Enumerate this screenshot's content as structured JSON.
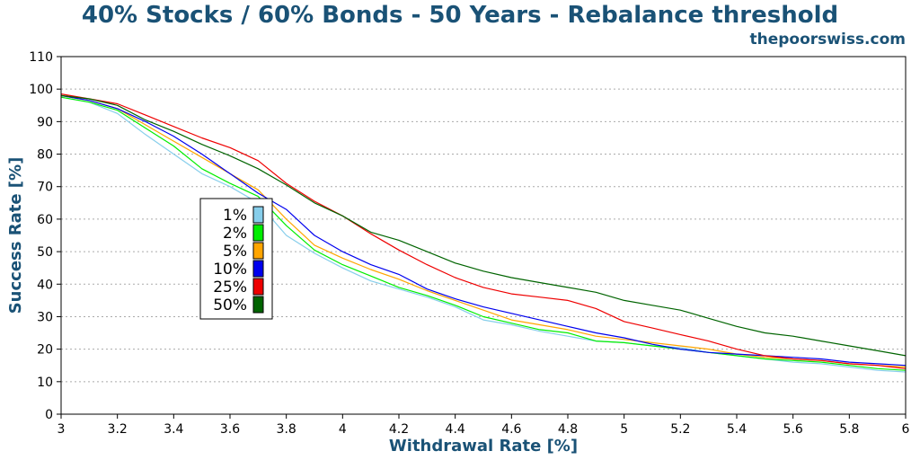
{
  "chart_data": {
    "type": "line",
    "title": "40% Stocks / 60% Bonds - 50 Years - Rebalance threshold",
    "subtitle": "thepoorswiss.com",
    "xlabel": "Withdrawal Rate [%]",
    "ylabel": "Success Rate [%]",
    "xlim": [
      3,
      6
    ],
    "ylim": [
      0,
      110
    ],
    "x_ticks": [
      "3",
      "3.2",
      "3.4",
      "3.6",
      "3.8",
      "4",
      "4.2",
      "4.4",
      "4.6",
      "4.8",
      "5",
      "5.2",
      "5.4",
      "5.6",
      "5.8",
      "6"
    ],
    "y_ticks": [
      "0",
      "10",
      "20",
      "30",
      "40",
      "50",
      "60",
      "70",
      "80",
      "90",
      "100",
      "110"
    ],
    "grid": "horizontal dotted",
    "legend_position": "left",
    "x": [
      3.0,
      3.1,
      3.2,
      3.3,
      3.4,
      3.5,
      3.6,
      3.7,
      3.8,
      3.9,
      4.0,
      4.1,
      4.2,
      4.3,
      4.4,
      4.5,
      4.6,
      4.7,
      4.8,
      4.9,
      5.0,
      5.1,
      5.2,
      5.3,
      5.4,
      5.5,
      5.6,
      5.7,
      5.8,
      5.9,
      6.0
    ],
    "series": [
      {
        "name": "1%",
        "color": "#87ceeb",
        "values": [
          97.5,
          96,
          92.5,
          86,
          80,
          74,
          70,
          65,
          55,
          49.5,
          45,
          41,
          38.5,
          36,
          33,
          29,
          27.5,
          25.5,
          24,
          22.5,
          22,
          21,
          20.5,
          19,
          18,
          17,
          16,
          15.5,
          14.5,
          13.5,
          13
        ]
      },
      {
        "name": "2%",
        "color": "#00ee00",
        "values": [
          97.5,
          96,
          93.5,
          88,
          82.5,
          75.5,
          71,
          67,
          58,
          50.5,
          46,
          42.5,
          39,
          36.5,
          33.5,
          30,
          28,
          26,
          25,
          22.5,
          22,
          21,
          20,
          19,
          18,
          17,
          16.5,
          16,
          15,
          14,
          13.5
        ]
      },
      {
        "name": "5%",
        "color": "#ffa500",
        "values": [
          98,
          96.5,
          94,
          89,
          84,
          79,
          74,
          69,
          60,
          52,
          48,
          44.5,
          41.5,
          38,
          35,
          32,
          29,
          27.5,
          26,
          24,
          23,
          22,
          21,
          20,
          18.5,
          17.5,
          17,
          16.5,
          15.5,
          15,
          14.5
        ]
      },
      {
        "name": "10%",
        "color": "#0000ee",
        "values": [
          98,
          96.5,
          94,
          90,
          85.5,
          80,
          74,
          68,
          63,
          55,
          50,
          46,
          43,
          38.5,
          35.5,
          33,
          31,
          29,
          27,
          25,
          23.5,
          21.5,
          20,
          19,
          18.5,
          18,
          17.5,
          17,
          16,
          15.5,
          15
        ]
      },
      {
        "name": "25%",
        "color": "#ee0000",
        "values": [
          98.5,
          97,
          95.5,
          92,
          88.5,
          85,
          82,
          78,
          71,
          65.5,
          61,
          55.5,
          50.5,
          46,
          42,
          39,
          37,
          36,
          35,
          32.5,
          28.5,
          26.5,
          24.5,
          22.5,
          20,
          18,
          17,
          16.5,
          15.5,
          15,
          14
        ]
      },
      {
        "name": "50%",
        "color": "#006400",
        "values": [
          98,
          97,
          95,
          90.5,
          87,
          83,
          79.5,
          75.5,
          70.5,
          65,
          61,
          56,
          53.5,
          50,
          46.5,
          44,
          42,
          40.5,
          39,
          37.5,
          35,
          33.5,
          32,
          29.5,
          27,
          25,
          24,
          22.5,
          21,
          19.5,
          18
        ]
      }
    ]
  }
}
